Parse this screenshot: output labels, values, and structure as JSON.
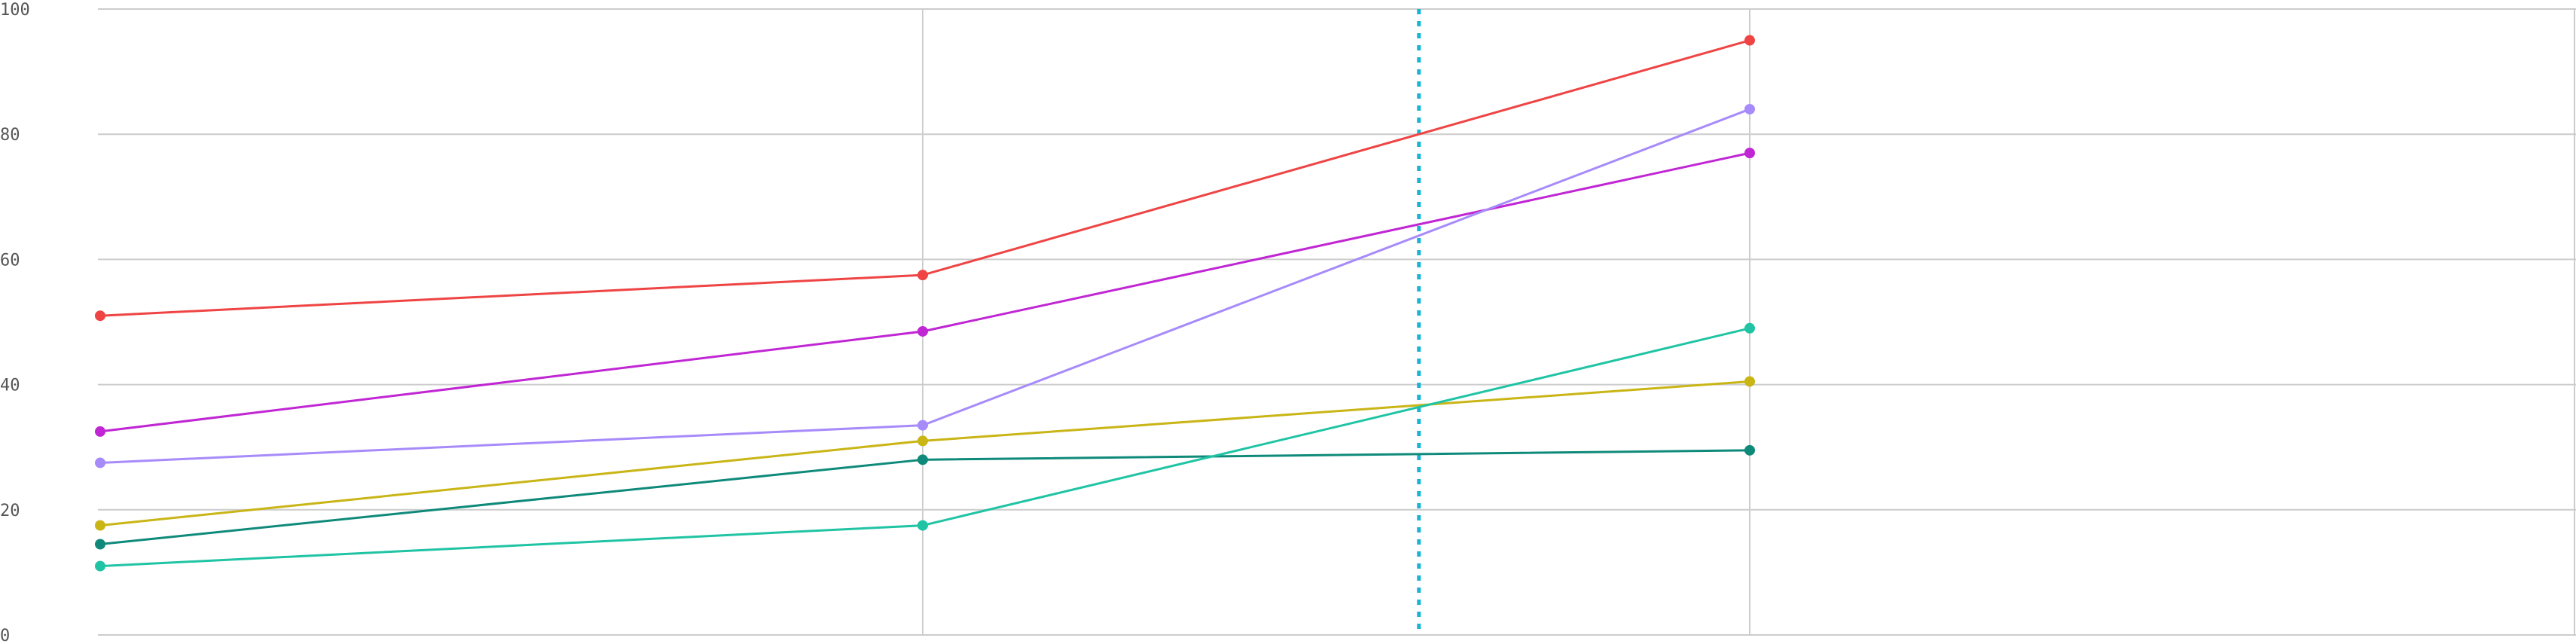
{
  "chart_data": {
    "type": "line",
    "title": "",
    "xlabel": "",
    "ylabel": "",
    "x": [
      0,
      1,
      2
    ],
    "ylim": [
      0,
      100
    ],
    "yticks": [
      0,
      20,
      40,
      60,
      80,
      100
    ],
    "ytick_labels": [
      "0",
      "20",
      "40",
      "60",
      "80",
      "100"
    ],
    "grid": true,
    "legend": "none",
    "reference_line": {
      "orientation": "vertical",
      "x": 1.6,
      "style": "dotted",
      "color": "#1ab3d6"
    },
    "series": [
      {
        "color": "#ef4444",
        "values": [
          51,
          57.5,
          95
        ]
      },
      {
        "color": "#c026d3",
        "values": [
          32.5,
          48.5,
          77
        ]
      },
      {
        "color": "#a78bfa",
        "values": [
          27.5,
          33.5,
          84
        ]
      },
      {
        "color": "#c9b516",
        "values": [
          17.5,
          31,
          40.5
        ]
      },
      {
        "color": "#0f8a7a",
        "values": [
          14.5,
          28,
          29.5
        ]
      },
      {
        "color": "#20c4a4",
        "values": [
          11,
          17.5,
          49
        ]
      }
    ]
  }
}
